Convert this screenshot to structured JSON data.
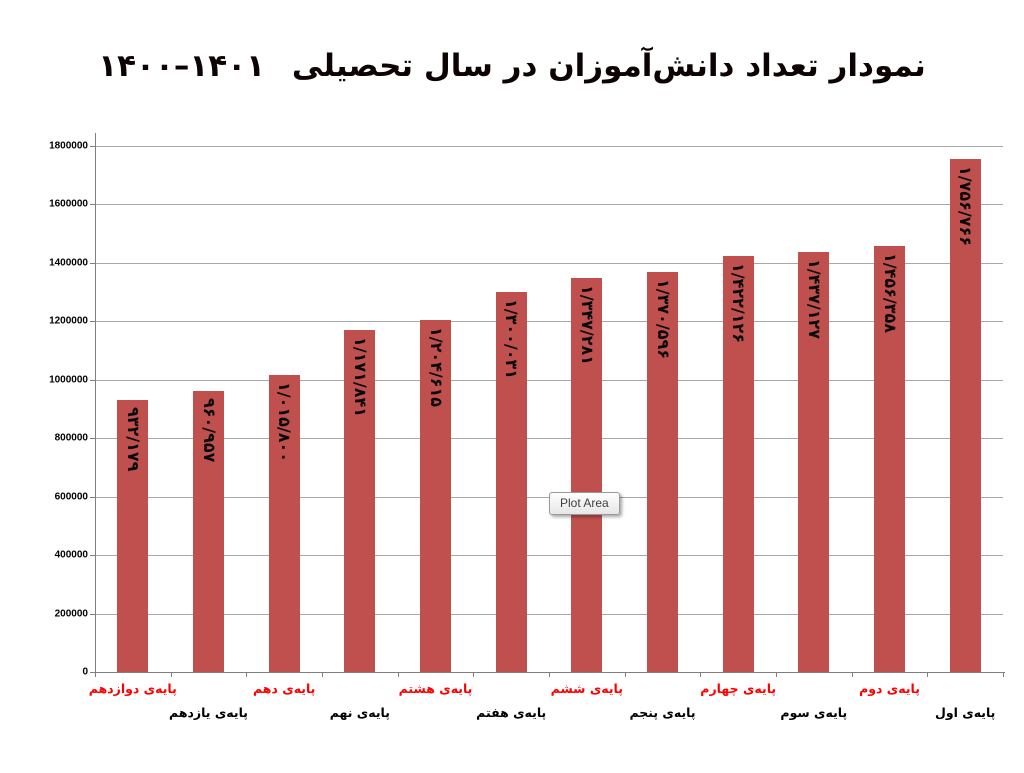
{
  "title": {
    "text": "نمودار تعداد دانش‌آموزان در سال تحصیلی",
    "years": "۱۴۰۰–۱۴۰۱"
  },
  "tooltip": {
    "label": "Plot Area"
  },
  "colors": {
    "bar": "#C0504D",
    "category_label_red": "#FF0000",
    "category_label_black": "#000000",
    "gridline": "#A8A8A8",
    "axis": "#7F7F7F"
  },
  "chart_data": {
    "type": "bar",
    "title": "نمودار تعداد دانش‌آموزان در سال تحصیلی ۱۴۰۱-۱۴۰۰",
    "direction": "rtl",
    "x_order": "left-to-right",
    "categories": [
      "پایه‌ی دوازدهم",
      "پایه‌ی یازدهم",
      "پایه‌ی دهم",
      "پایه‌ی نهم",
      "پایه‌ی هشتم",
      "پایه‌ی هفتم",
      "پایه‌ی ششم",
      "پایه‌ی پنجم",
      "پایه‌ی چهارم",
      "پایه‌ی سوم",
      "پایه‌ی دوم",
      "پایه‌ی اول"
    ],
    "values": [
      932179,
      960957,
      1015800,
      1171841,
      1204615,
      1300031,
      1347281,
      1370596,
      1422126,
      1437127,
      1456358,
      1756766
    ],
    "data_labels": [
      "۹۳۲/۱۷۹",
      "۹۶۰/۹۵۷",
      "۱/۰۱۵/۸۰۰",
      "۱/۱۷۱/۸۴۱",
      "۱/۲۰۴/۶۱۵",
      "۱/۳۰۰/۰۳۱",
      "۱/۳۴۷/۲۸۱",
      "۱/۳۷۰/۵۹۶",
      "۱/۴۲۲/۱۲۶",
      "۱/۴۳۷/۱۲۷",
      "۱/۴۵۶/۳۵۸",
      "۱/۷۵۶/۷۶۶"
    ],
    "category_label_colors": [
      "#FF0000",
      "#000000",
      "#FF0000",
      "#000000",
      "#FF0000",
      "#000000",
      "#FF0000",
      "#000000",
      "#FF0000",
      "#000000",
      "#FF0000",
      "#000000"
    ],
    "ylim": [
      0,
      1800000
    ],
    "yticks": [
      0,
      200000,
      400000,
      600000,
      800000,
      1000000,
      1200000,
      1400000,
      1600000,
      1800000
    ],
    "ytick_labels": [
      "0",
      "200000",
      "400000",
      "600000",
      "800000",
      "1000000",
      "1200000",
      "1400000",
      "1600000",
      "1800000"
    ],
    "grid": true,
    "legend": "none",
    "xlabel": "",
    "ylabel": ""
  }
}
